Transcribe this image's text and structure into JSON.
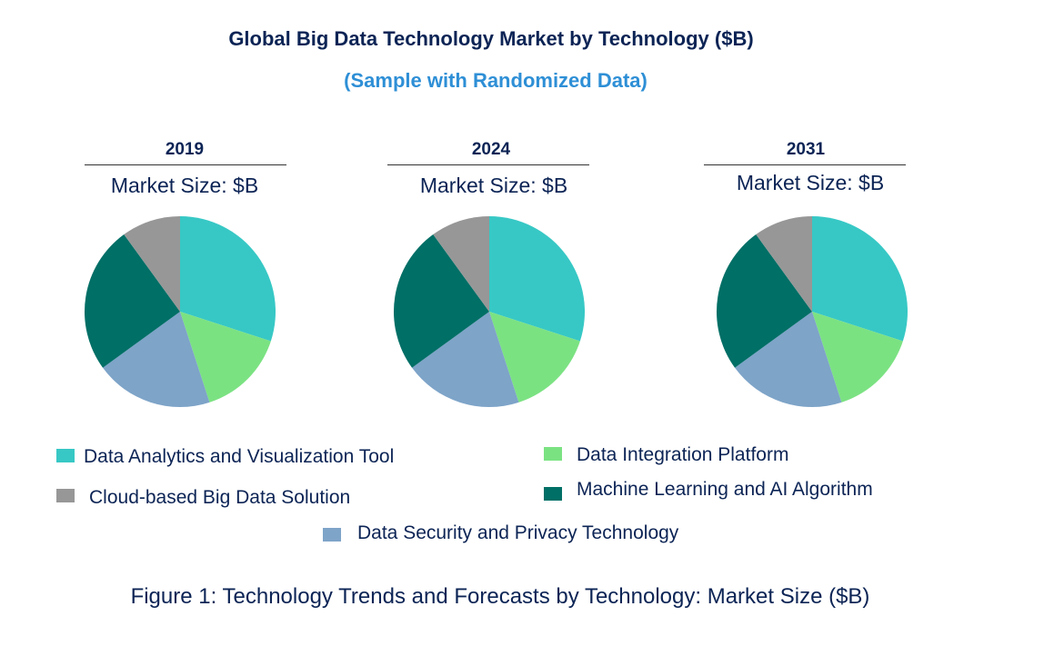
{
  "chart_data": {
    "type": "pie",
    "title": "Global Big Data Technology Market by Technology ($B)",
    "subtitle": "(Sample with Randomized Data)",
    "caption": "Figure 1: Technology Trends and Forecasts by Technology: Market Size ($B)",
    "categories": [
      "Data Analytics and Visualization Tool",
      "Data Integration Platform",
      "Data Security and Privacy Technology",
      "Machine Learning and AI Algorithm",
      "Cloud-based Big Data Solution"
    ],
    "colors": [
      "#37C8C5",
      "#7BE282",
      "#7EA4C8",
      "#006F66",
      "#979797"
    ],
    "legend_placement": "bottom",
    "pies": [
      {
        "year": "2019",
        "label": "Market Size: $B",
        "values": [
          30,
          15,
          20,
          25,
          10
        ]
      },
      {
        "year": "2024",
        "label": "Market Size: $B",
        "values": [
          30,
          15,
          20,
          25,
          10
        ]
      },
      {
        "year": "2031",
        "label": "Market Size: $B",
        "values": [
          30,
          15,
          20,
          25,
          10
        ]
      }
    ]
  }
}
